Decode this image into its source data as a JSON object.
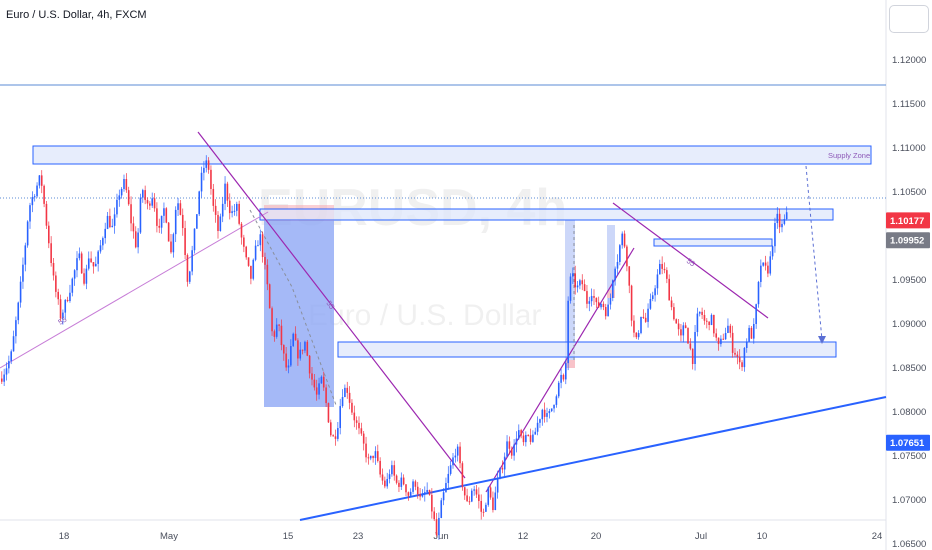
{
  "header": {
    "title": "Euro / U.S. Dollar, 4h, FXCM"
  },
  "watermark": {
    "symbol": "EURUSD, 4h",
    "name": "Euro / U.S. Dollar"
  },
  "chart_data": {
    "type": "candlestick",
    "title": "Euro / U.S. Dollar, 4h, FXCM",
    "y_ticks": [
      "1.12000",
      "1.11500",
      "1.11000",
      "1.10500",
      "1.09500",
      "1.09000",
      "1.08500",
      "1.08000",
      "1.07500",
      "1.07000",
      "1.06500"
    ],
    "y_tick_values": [
      1.12,
      1.115,
      1.11,
      1.105,
      1.095,
      1.09,
      1.085,
      1.08,
      1.075,
      1.07,
      1.065
    ],
    "ylim": [
      1.0615,
      1.1265
    ],
    "x_ticks": [
      "18",
      "May",
      "15",
      "23",
      "Jun",
      "12",
      "20",
      "Jul",
      "10",
      "24"
    ],
    "price_badges": [
      {
        "label": "1.10177",
        "value": 1.10177,
        "color": "#f23645"
      },
      {
        "label": "1.09952",
        "value": 1.09952,
        "color": "#787b86"
      },
      {
        "label": "1.07651",
        "value": 1.07651,
        "color": "#2962ff"
      }
    ],
    "annotations": [
      {
        "text": "Supply Zone"
      },
      {
        "text": "55"
      },
      {
        "text": "55"
      },
      {
        "text": "55"
      }
    ],
    "colors": {
      "up": "#2962ff",
      "down": "#f23645",
      "drawings": "#9c27b0",
      "zone_fill": "#dde5fb",
      "zone_border": "#2962ff"
    },
    "price_path": [
      [
        0,
        1.0838
      ],
      [
        10,
        1.0862
      ],
      [
        18,
        1.0925
      ],
      [
        24,
        1.0985
      ],
      [
        28,
        1.1032
      ],
      [
        32,
        1.1045
      ],
      [
        40,
        1.1068
      ],
      [
        45,
        1.102
      ],
      [
        49,
        1.0985
      ],
      [
        53,
        1.0948
      ],
      [
        60,
        1.0908
      ],
      [
        66,
        1.0928
      ],
      [
        72,
        1.0952
      ],
      [
        78,
        1.0978
      ],
      [
        84,
        1.0948
      ],
      [
        88,
        1.0978
      ],
      [
        94,
        1.0962
      ],
      [
        100,
        1.099
      ],
      [
        106,
        1.1022
      ],
      [
        112,
        1.1008
      ],
      [
        118,
        1.1048
      ],
      [
        124,
        1.1062
      ],
      [
        130,
        1.1018
      ],
      [
        136,
        1.0985
      ],
      [
        141,
        1.1058
      ],
      [
        146,
        1.1032
      ],
      [
        152,
        1.1048
      ],
      [
        158,
        1.1002
      ],
      [
        164,
        1.1035
      ],
      [
        170,
        1.0978
      ],
      [
        176,
        1.1045
      ],
      [
        182,
        1.1012
      ],
      [
        187,
        1.0948
      ],
      [
        193,
        1.0995
      ],
      [
        199,
        1.1058
      ],
      [
        203,
        1.1078
      ],
      [
        207,
        1.1085
      ],
      [
        212,
        1.1035
      ],
      [
        218,
        1.1002
      ],
      [
        224,
        1.1058
      ],
      [
        230,
        1.1025
      ],
      [
        236,
        1.1032
      ],
      [
        241,
        1.0995
      ],
      [
        246,
        1.0968
      ],
      [
        250,
        1.0952
      ],
      [
        255,
        1.0985
      ],
      [
        259,
        1.1002
      ],
      [
        263,
        1.0972
      ],
      [
        267,
        1.0938
      ],
      [
        272,
        1.0882
      ],
      [
        277,
        1.0902
      ],
      [
        282,
        1.0868
      ],
      [
        287,
        1.0842
      ],
      [
        292,
        1.0888
      ],
      [
        298,
        1.0862
      ],
      [
        304,
        1.088
      ],
      [
        310,
        1.0842
      ],
      [
        316,
        1.0818
      ],
      [
        321,
        1.0838
      ],
      [
        326,
        1.0805
      ],
      [
        331,
        1.0768
      ],
      [
        336,
        1.0778
      ],
      [
        341,
        1.0822
      ],
      [
        346,
        1.0828
      ],
      [
        351,
        1.0802
      ],
      [
        356,
        1.0785
      ],
      [
        362,
        1.0765
      ],
      [
        368,
        1.0742
      ],
      [
        374,
        1.0755
      ],
      [
        380,
        1.0725
      ],
      [
        385,
        1.0715
      ],
      [
        390,
        1.0738
      ],
      [
        396,
        1.0718
      ],
      [
        402,
        1.0722
      ],
      [
        408,
        1.0705
      ],
      [
        414,
        1.0722
      ],
      [
        420,
        1.0698
      ],
      [
        426,
        1.0712
      ],
      [
        432,
        1.0685
      ],
      [
        436,
        1.0658
      ],
      [
        440,
        1.0692
      ],
      [
        444,
        1.0712
      ],
      [
        450,
        1.0738
      ],
      [
        456,
        1.0762
      ],
      [
        462,
        1.0715
      ],
      [
        467,
        1.0692
      ],
      [
        472,
        1.0718
      ],
      [
        477,
        1.0702
      ],
      [
        482,
        1.068
      ],
      [
        487,
        1.0712
      ],
      [
        492,
        1.0692
      ],
      [
        497,
        1.0722
      ],
      [
        502,
        1.0742
      ],
      [
        507,
        1.0768
      ],
      [
        512,
        1.0752
      ],
      [
        517,
        1.0782
      ],
      [
        522,
        1.0762
      ],
      [
        527,
        1.0772
      ],
      [
        532,
        1.0768
      ],
      [
        537,
        1.0788
      ],
      [
        542,
        1.0805
      ],
      [
        547,
        1.0792
      ],
      [
        552,
        1.0808
      ],
      [
        557,
        1.0828
      ],
      [
        561,
        1.0842
      ],
      [
        564,
        1.0825
      ],
      [
        566,
        1.0885
      ],
      [
        568,
        1.0948
      ],
      [
        572,
        1.0952
      ],
      [
        576,
        1.094
      ],
      [
        581,
        1.0948
      ],
      [
        586,
        1.0925
      ],
      [
        591,
        1.0938
      ],
      [
        596,
        1.0918
      ],
      [
        601,
        1.0925
      ],
      [
        606,
        1.0912
      ],
      [
        610,
        1.0932
      ],
      [
        613,
        1.0965
      ],
      [
        617,
        1.0975
      ],
      [
        621,
        1.1002
      ],
      [
        625,
        1.0985
      ],
      [
        628,
        1.0948
      ],
      [
        632,
        1.0892
      ],
      [
        636,
        1.0878
      ],
      [
        640,
        1.0912
      ],
      [
        645,
        1.0902
      ],
      [
        650,
        1.0925
      ],
      [
        655,
        1.0948
      ],
      [
        660,
        1.0968
      ],
      [
        665,
        1.0955
      ],
      [
        670,
        1.0922
      ],
      [
        675,
        1.0902
      ],
      [
        680,
        1.0882
      ],
      [
        684,
        1.0902
      ],
      [
        688,
        1.0878
      ],
      [
        692,
        1.086
      ],
      [
        696,
        1.0905
      ],
      [
        700,
        1.0915
      ],
      [
        705,
        1.0898
      ],
      [
        710,
        1.0908
      ],
      [
        714,
        1.0888
      ],
      [
        718,
        1.0872
      ],
      [
        722,
        1.0885
      ],
      [
        727,
        1.0898
      ],
      [
        732,
        1.0872
      ],
      [
        736,
        1.0865
      ],
      [
        740,
        1.0848
      ],
      [
        744,
        1.0875
      ],
      [
        748,
        1.0892
      ],
      [
        752,
        1.0885
      ],
      [
        756,
        1.0925
      ],
      [
        760,
        1.0968
      ],
      [
        764,
        1.0962
      ],
      [
        768,
        1.0962
      ],
      [
        772,
        1.0995
      ],
      [
        776,
        1.1022
      ],
      [
        780,
        1.1008
      ],
      [
        784,
        1.1018
      ],
      [
        787,
        1.1025
      ]
    ]
  }
}
